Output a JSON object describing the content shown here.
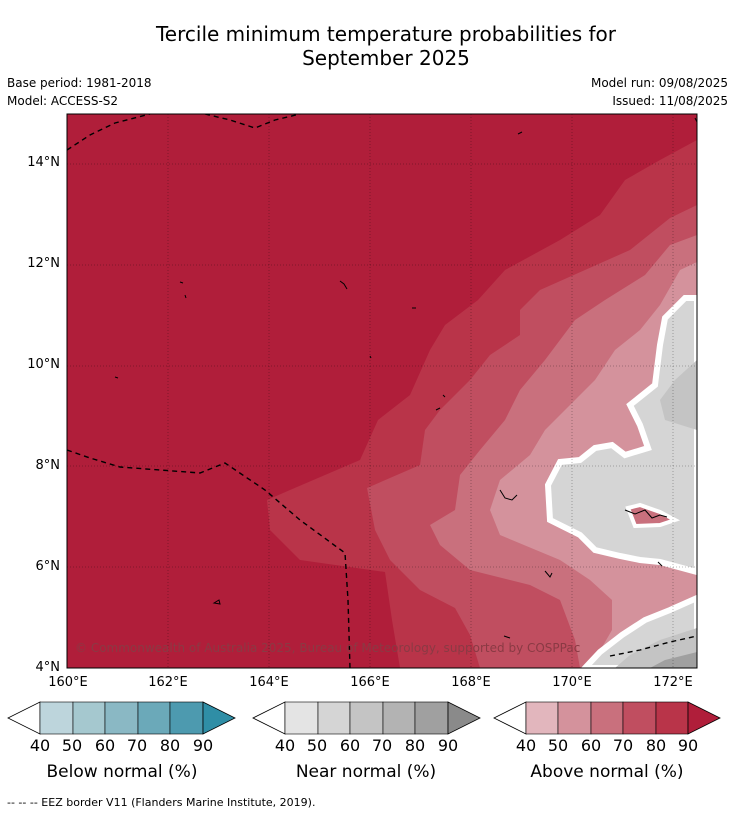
{
  "title": "Tercile minimum temperature probabilities for\nSeptember 2025",
  "title_line1": "Tercile minimum temperature probabilities for",
  "title_line2": "September 2025",
  "base_period": "Base period: 1981-2018",
  "model": "Model: ACCESS-S2",
  "model_run": "Model run: 09/08/2025",
  "issued": "Issued: 11/08/2025",
  "map": {
    "lat_ticks": [
      "14°N",
      "12°N",
      "10°N",
      "8°N",
      "6°N",
      "4°N"
    ],
    "lon_ticks": [
      "160°E",
      "162°E",
      "164°E",
      "166°E",
      "168°E",
      "170°E",
      "172°E"
    ],
    "copyright": "© Commonwealth of Australia 2025, Bureau of Meteorology, supported by COSPPac"
  },
  "legend": {
    "ticks": [
      "40",
      "50",
      "60",
      "70",
      "80",
      "90"
    ],
    "below": {
      "label": "Below normal (%)",
      "colors": [
        "#bdd5dc",
        "#a5c8cf",
        "#8ab8c4",
        "#6ba9b9",
        "#4d9aaf",
        "#2f8ea6"
      ]
    },
    "near": {
      "label": "Near normal (%)",
      "colors": [
        "#e4e4e4",
        "#d5d5d5",
        "#c4c4c4",
        "#b3b3b3",
        "#a0a0a0",
        "#8a8a8a"
      ]
    },
    "above": {
      "label": "Above normal (%)",
      "colors": [
        "#e2b6bd",
        "#d4929c",
        "#c9707d",
        "#c04e60",
        "#b93449",
        "#b01e3a"
      ]
    }
  },
  "eez_note": "--  --  -- EEZ border V11 (Flanders Marine Institute, 2019)."
}
